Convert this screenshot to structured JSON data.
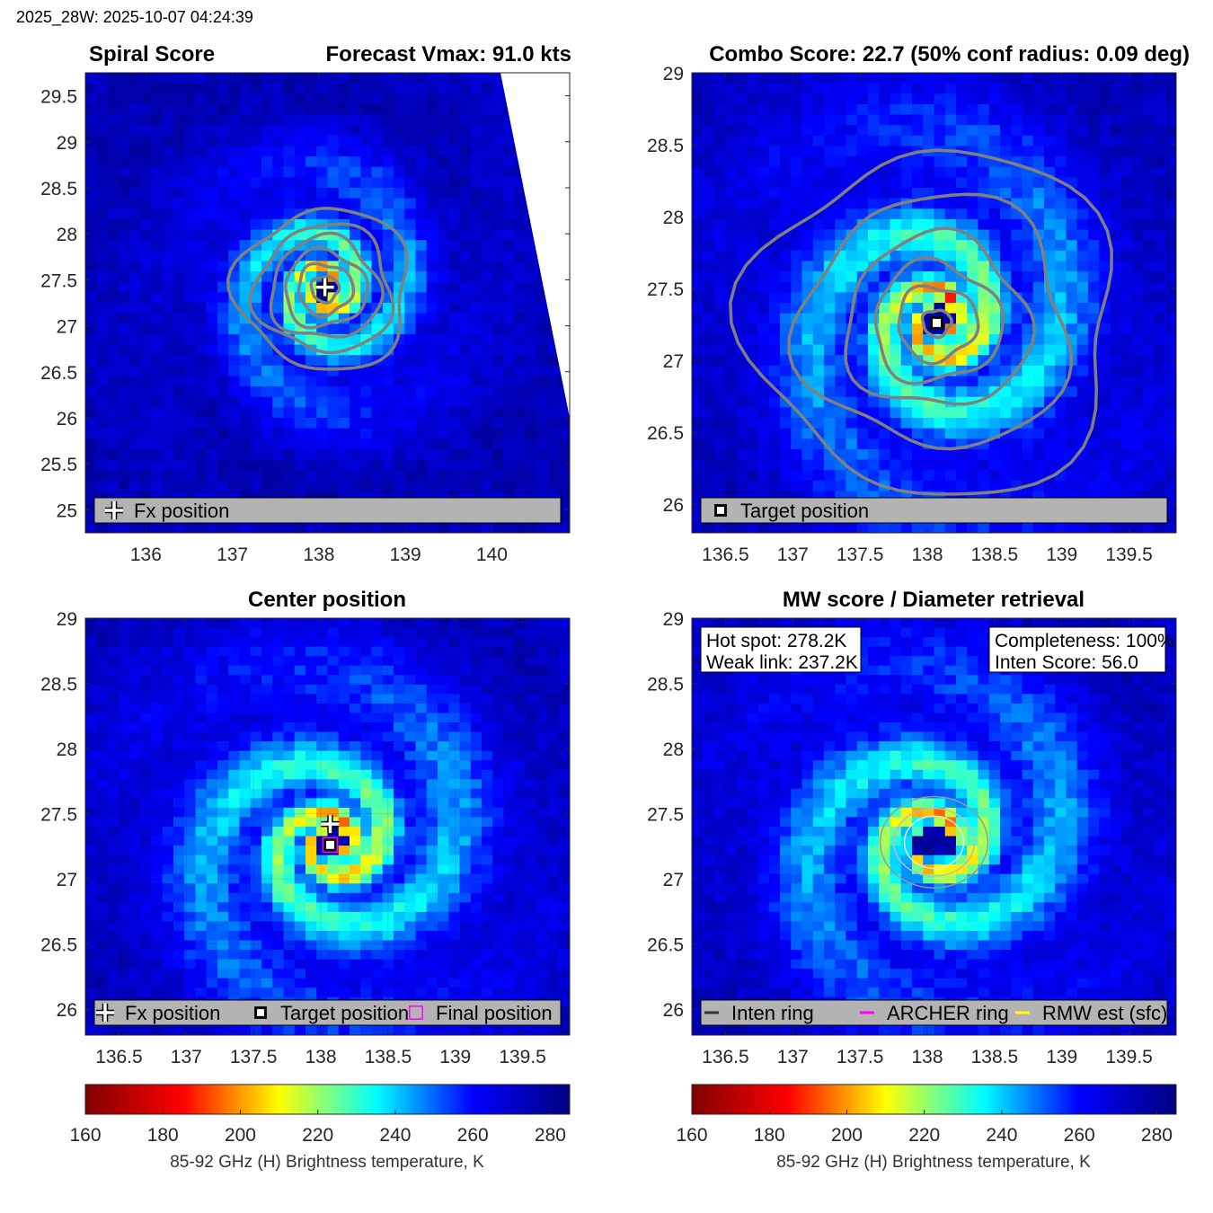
{
  "page": {
    "timestamp": "2025_28W: 2025-10-07 04:24:39",
    "palette": [
      "#800000",
      "#ff0000",
      "#ffff00",
      "#00ffff",
      "#0000ff",
      "#000080"
    ],
    "contour_color": "#808080",
    "legend_bg": "#b3b3b3"
  },
  "chart_data": [
    {
      "type": "heatmap",
      "title_left": "Spiral Score",
      "title_right": "Forecast Vmax: 91.0 kts",
      "xlim": [
        135.3,
        140.9
      ],
      "ylim": [
        24.75,
        29.75
      ],
      "xticks": [
        136,
        137,
        138,
        139,
        140
      ],
      "yticks": [
        25,
        25.5,
        26,
        26.5,
        27,
        27.5,
        28,
        28.5,
        29,
        29.5
      ],
      "grid": false,
      "center": {
        "x": 138.07,
        "y": 27.4
      },
      "contours_deg": [
        0.15,
        0.3,
        0.45,
        0.6,
        0.75,
        0.95
      ],
      "swath_edge": [
        [
          140.1,
          29.75
        ],
        [
          140.9,
          26.0
        ]
      ],
      "markers": [
        {
          "kind": "fx-cross",
          "x": 138.07,
          "y": 27.42
        }
      ],
      "legend": [
        {
          "symbol": "fx-cross",
          "label": "Fx position"
        }
      ]
    },
    {
      "type": "heatmap",
      "title_left": "",
      "title_right": "Combo Score: 22.7  (50% conf radius: 0.09 deg)",
      "xlim": [
        136.25,
        139.85
      ],
      "ylim": [
        25.8,
        29.0
      ],
      "xticks": [
        136.5,
        137,
        137.5,
        138,
        138.5,
        139,
        139.5
      ],
      "yticks": [
        26,
        26.5,
        27,
        27.5,
        28,
        28.5,
        29
      ],
      "grid": false,
      "center": {
        "x": 138.07,
        "y": 27.26
      },
      "contours_deg": [
        0.1,
        0.28,
        0.45,
        0.65,
        0.95,
        1.3
      ],
      "markers": [
        {
          "kind": "target-square",
          "x": 138.07,
          "y": 27.26
        }
      ],
      "legend": [
        {
          "symbol": "target-square",
          "label": "Target position"
        }
      ]
    },
    {
      "type": "heatmap",
      "title_left": "",
      "title_center": "Center position",
      "xlim": [
        136.25,
        139.85
      ],
      "ylim": [
        25.8,
        29.0
      ],
      "xticks": [
        136.5,
        137,
        137.5,
        138,
        138.5,
        139,
        139.5
      ],
      "yticks": [
        26,
        26.5,
        27,
        27.5,
        28,
        28.5,
        29
      ],
      "grid": true,
      "center": {
        "x": 138.07,
        "y": 27.26
      },
      "markers": [
        {
          "kind": "fx-cross",
          "x": 138.07,
          "y": 27.42
        },
        {
          "kind": "target-square",
          "x": 138.07,
          "y": 27.26
        },
        {
          "kind": "final-square",
          "x": 138.07,
          "y": 27.26
        }
      ],
      "legend": [
        {
          "symbol": "fx-cross",
          "label": "Fx position"
        },
        {
          "symbol": "target-square",
          "label": "Target position"
        },
        {
          "symbol": "final-square",
          "label": "Final position"
        }
      ]
    },
    {
      "type": "heatmap",
      "title_left": "",
      "title_center": "MW score / Diameter retrieval",
      "xlim": [
        136.25,
        139.85
      ],
      "ylim": [
        25.8,
        29.0
      ],
      "xticks": [
        136.5,
        137,
        137.5,
        138,
        138.5,
        139,
        139.5
      ],
      "yticks": [
        26,
        26.5,
        27,
        27.5,
        28,
        28.5,
        29
      ],
      "grid": false,
      "center": {
        "x": 138.05,
        "y": 27.28
      },
      "rings": [
        {
          "color": "#999999",
          "rx": 0.4,
          "ry": 0.35
        },
        {
          "color": "#bbbbbb",
          "rx": 0.3,
          "ry": 0.26
        },
        {
          "color": "#e6e6e6",
          "rx": 0.22,
          "ry": 0.2
        }
      ],
      "annotations_left": [
        "Hot spot: 278.2K",
        "Weak link: 237.2K"
      ],
      "annotations_right": [
        "Completeness: 100%",
        "Inten Score: 56.0"
      ],
      "legend": [
        {
          "symbol": "line",
          "color": "#333333",
          "label": "Inten ring"
        },
        {
          "symbol": "line",
          "color": "#ff00ff",
          "label": "ARCHER ring"
        },
        {
          "symbol": "line",
          "color": "#ffff00",
          "label": "RMW est (sfc)"
        }
      ]
    }
  ],
  "colorbars": [
    {
      "range": [
        160,
        285
      ],
      "ticks": [
        160,
        180,
        200,
        220,
        240,
        260,
        280
      ],
      "label": "85-92 GHz (H) Brightness temperature, K"
    },
    {
      "range": [
        160,
        285
      ],
      "ticks": [
        160,
        180,
        200,
        220,
        240,
        260,
        280
      ],
      "label": "85-92 GHz (H) Brightness temperature, K"
    }
  ]
}
